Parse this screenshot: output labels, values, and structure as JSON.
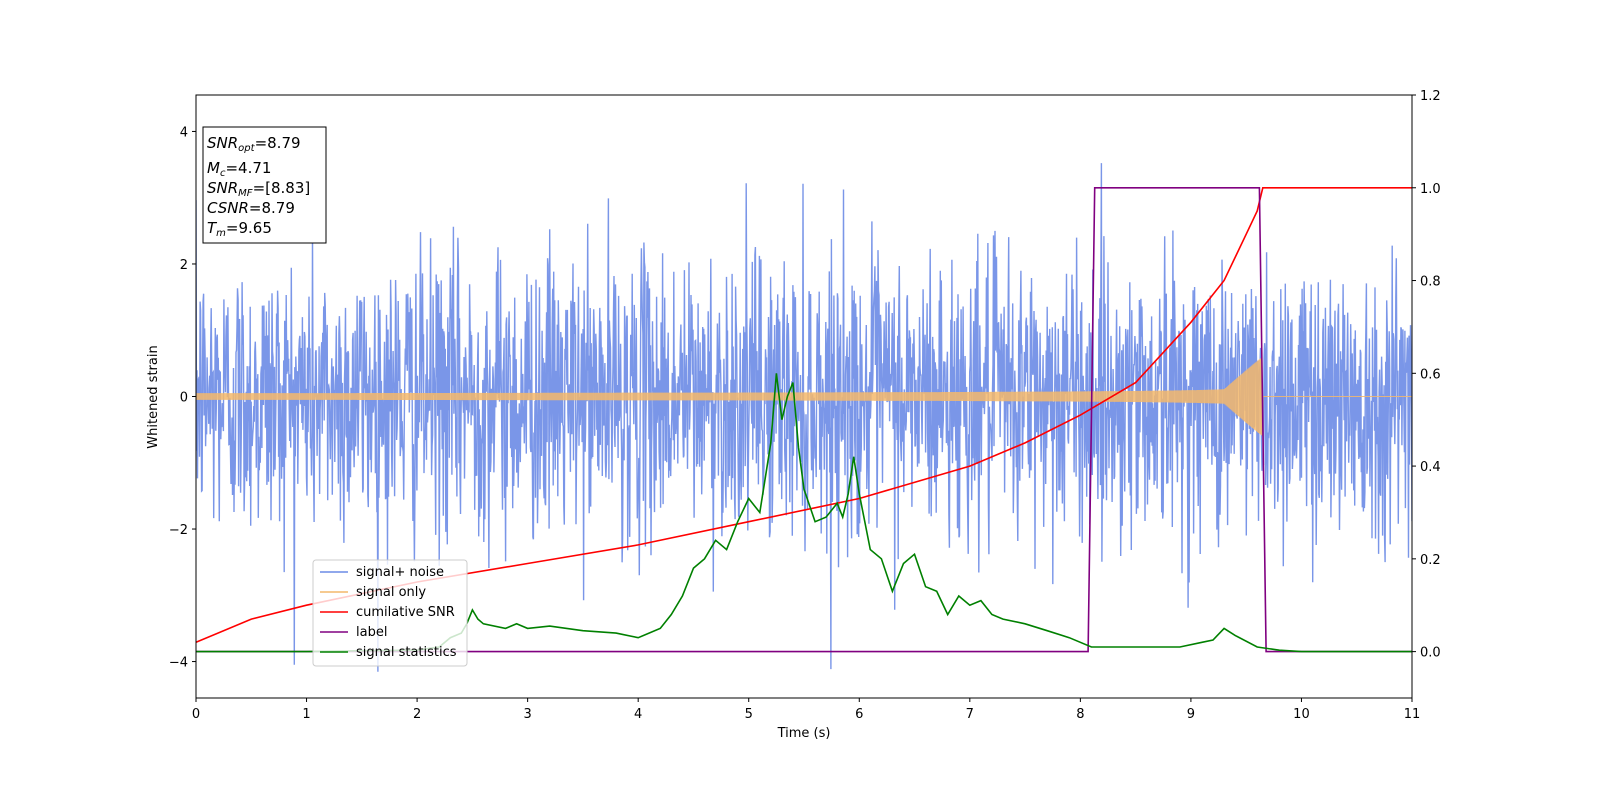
{
  "chart_data": {
    "type": "line",
    "title": "",
    "xlabel": "Time (s)",
    "ylabel_left": "Whitened strain",
    "ylabel_right": "",
    "xlim": [
      0,
      11
    ],
    "ylim_left": [
      -4.55,
      4.55
    ],
    "ylim_right": [
      -0.1,
      1.2
    ],
    "x_ticks": [
      "0",
      "1",
      "2",
      "3",
      "4",
      "5",
      "6",
      "7",
      "8",
      "9",
      "10",
      "11"
    ],
    "y_left_ticks": [
      "−4",
      "−2",
      "0",
      "2",
      "4"
    ],
    "y_right_ticks": [
      "0.0",
      "0.2",
      "0.4",
      "0.6",
      "0.8",
      "1.0",
      "1.2"
    ],
    "grid": false,
    "legend_position": "lower-left",
    "colors": {
      "signal_noise": "#6b8be6",
      "signal_only": "#f4b96b",
      "cumulative_snr": "#ff0000",
      "label": "#800080",
      "signal_statistics": "#008000"
    },
    "series": [
      {
        "name": "signal+ noise",
        "axis": "left",
        "description_values": {
          "t_start": 0,
          "t_end": 11,
          "typical_amplitude": 1.7,
          "max_value": 4.15,
          "min_value": -4.1
        }
      },
      {
        "name": "signal only",
        "axis": "left",
        "t_start": 0,
        "t_merger": 9.65,
        "amplitude_start": 0.05,
        "amplitude_at_merger": 0.6
      },
      {
        "name": "cumilative SNR",
        "axis": "right",
        "x": [
          0,
          0.5,
          1,
          2,
          3,
          4,
          5,
          6,
          7,
          7.5,
          8,
          8.5,
          9,
          9.3,
          9.5,
          9.6,
          9.65,
          11
        ],
        "y": [
          0.02,
          0.07,
          0.1,
          0.15,
          0.19,
          0.23,
          0.28,
          0.33,
          0.4,
          0.45,
          0.51,
          0.58,
          0.71,
          0.8,
          0.9,
          0.95,
          1.0,
          1.0
        ]
      },
      {
        "name": "label",
        "axis": "right",
        "x": [
          0,
          8.07,
          8.13,
          9.62,
          9.68,
          11
        ],
        "y": [
          0,
          0,
          1,
          1,
          0,
          0
        ]
      },
      {
        "name": "signal statistics",
        "axis": "right",
        "x": [
          0,
          0.5,
          1,
          1.5,
          2,
          2.2,
          2.3,
          2.4,
          2.45,
          2.5,
          2.55,
          2.6,
          2.8,
          2.9,
          3,
          3.2,
          3.5,
          3.8,
          4,
          4.2,
          4.3,
          4.4,
          4.5,
          4.6,
          4.7,
          4.8,
          4.9,
          5,
          5.1,
          5.2,
          5.25,
          5.3,
          5.35,
          5.4,
          5.45,
          5.5,
          5.6,
          5.7,
          5.8,
          5.85,
          5.9,
          5.95,
          6,
          6.1,
          6.2,
          6.3,
          6.4,
          6.5,
          6.6,
          6.7,
          6.8,
          6.9,
          7,
          7.1,
          7.2,
          7.3,
          7.5,
          7.7,
          7.9,
          8.1,
          8.3,
          8.6,
          8.9,
          9.1,
          9.2,
          9.3,
          9.4,
          9.6,
          9.8,
          10,
          11
        ],
        "y": [
          0,
          0,
          0,
          0.002,
          0.003,
          0.01,
          0.03,
          0.04,
          0.06,
          0.09,
          0.07,
          0.06,
          0.05,
          0.06,
          0.05,
          0.055,
          0.045,
          0.04,
          0.03,
          0.05,
          0.08,
          0.12,
          0.18,
          0.2,
          0.24,
          0.22,
          0.28,
          0.33,
          0.3,
          0.45,
          0.6,
          0.5,
          0.55,
          0.58,
          0.44,
          0.35,
          0.28,
          0.29,
          0.32,
          0.29,
          0.34,
          0.42,
          0.34,
          0.22,
          0.2,
          0.13,
          0.19,
          0.21,
          0.14,
          0.13,
          0.08,
          0.12,
          0.1,
          0.11,
          0.08,
          0.07,
          0.06,
          0.045,
          0.03,
          0.01,
          0.01,
          0.01,
          0.01,
          0.02,
          0.025,
          0.05,
          0.035,
          0.01,
          0.003,
          0.0,
          0.0
        ]
      }
    ],
    "info_box": {
      "snr_opt": {
        "base": "SNR",
        "sub": "opt",
        "value": "=8.79"
      },
      "mc": {
        "base": "M",
        "sub": "c",
        "value": "=4.71"
      },
      "snr_mf": {
        "base": "SNR",
        "sub": "MF",
        "value": "=[8.83]"
      },
      "csnr": {
        "base": "CSNR",
        "value": "=8.79"
      },
      "tm": {
        "base": "T",
        "sub": "m",
        "value": "=9.65"
      }
    }
  }
}
